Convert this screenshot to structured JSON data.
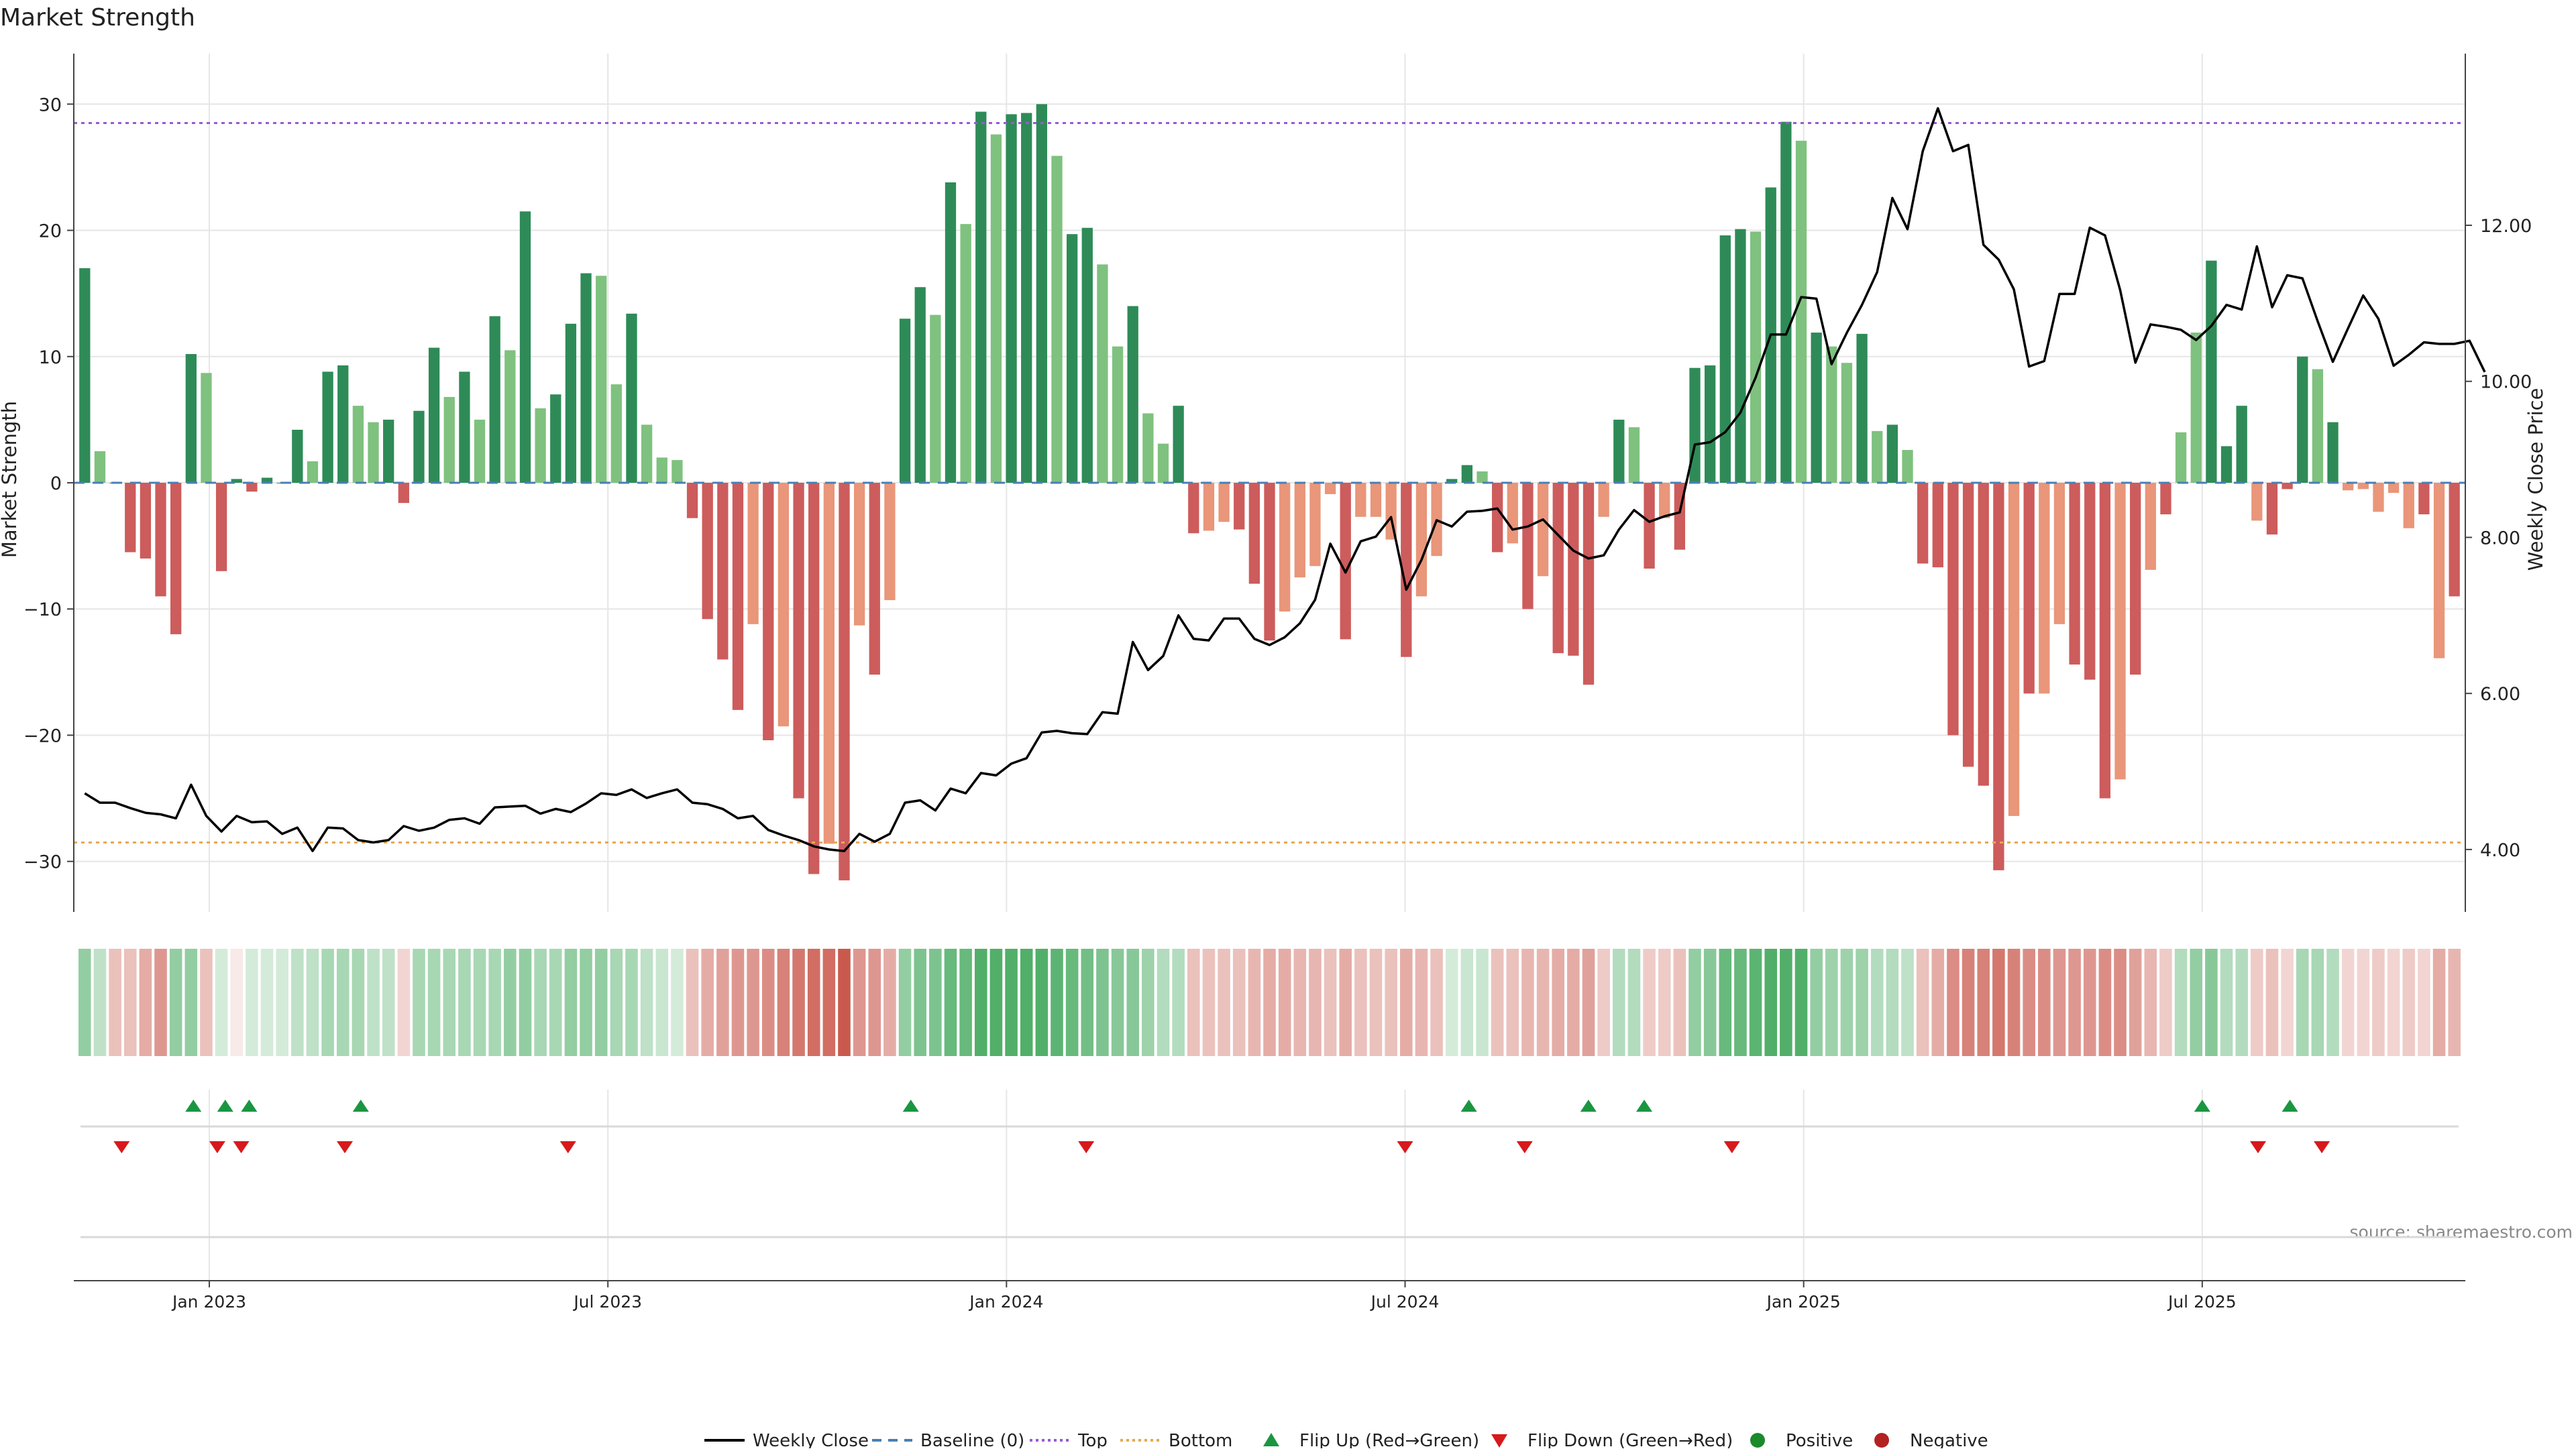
{
  "chart_data": {
    "type": "bar",
    "title": "Market Strength",
    "ylabel_left": "Market Strength",
    "ylabel_right": "Weekly Close Price",
    "ylim_left": [
      -34,
      34
    ],
    "ylim_right": [
      3.2,
      14.2
    ],
    "yticks_left": [
      30,
      20,
      10,
      0,
      -10,
      -20,
      -30
    ],
    "ytick_labels_left": [
      "30",
      "20",
      "10",
      "0",
      "−10",
      "−20",
      "−30"
    ],
    "yticks_right": [
      4,
      6,
      8,
      10,
      12
    ],
    "ytick_labels_right": [
      "4.00",
      "6.00",
      "8.00",
      "10.00",
      "12.00"
    ],
    "x_range": [
      2022.95,
      2025.95
    ],
    "x_ticks": [
      2023.12,
      2023.62,
      2024.12,
      2024.62,
      2025.12,
      2025.62
    ],
    "x_tick_labels": [
      "Jan 2023",
      "Jul 2023",
      "Jan 2024",
      "Jul 2024",
      "Jan 2025",
      "Jul 2025"
    ],
    "top_level": 28.5,
    "bottom_level": -28.5,
    "strength": [
      17,
      2.5,
      0,
      -5.5,
      -6,
      -9,
      -12,
      10.2,
      8.7,
      -7,
      0.3,
      -0.7,
      0.4,
      0,
      4.2,
      1.7,
      8.8,
      9.3,
      6.1,
      4.8,
      5,
      -1.6,
      5.7,
      10.7,
      6.8,
      8.8,
      5,
      13.2,
      10.5,
      21.5,
      5.9,
      7,
      12.6,
      16.6,
      16.4,
      7.8,
      13.4,
      4.6,
      2,
      1.8,
      -2.8,
      -10.8,
      -14,
      -18,
      -11.2,
      -20.4,
      -19.3,
      -25,
      -31,
      -28.6,
      -31.5,
      -11.3,
      -15.2,
      -9.3,
      13,
      15.5,
      13.3,
      23.8,
      20.5,
      29.4,
      27.6,
      29.2,
      29.3,
      30,
      25.9,
      19.7,
      20.2,
      17.3,
      10.8,
      14,
      5.5,
      3.1,
      6.1,
      -4,
      -3.8,
      -3.1,
      -3.7,
      -8,
      -12.5,
      -10.2,
      -7.5,
      -6.6,
      -0.9,
      -12.4,
      -2.7,
      -2.7,
      -4.5,
      -13.8,
      -9,
      -5.8,
      0.3,
      1.4,
      0.9,
      -5.5,
      -4.8,
      -10,
      -7.4,
      -13.5,
      -13.7,
      -16,
      -2.7,
      5,
      4.4,
      -6.8,
      -2.8,
      -5.3,
      9.1,
      9.3,
      19.6,
      20.1,
      19.9,
      23.4,
      28.6,
      27.1,
      11.9,
      10.8,
      9.5,
      11.8,
      4.1,
      4.6,
      2.6,
      -6.4,
      -6.7,
      -20,
      -22.5,
      -24,
      -30.7,
      -26.4,
      -16.7,
      -16.7,
      -11.2,
      -14.4,
      -15.6,
      -25,
      -23.5,
      -15.2,
      -6.9,
      -2.5,
      4,
      11.9,
      17.6,
      2.9,
      6.1,
      -3,
      -4.1,
      -0.5,
      10,
      9,
      4.8,
      -0.6,
      -0.5,
      -2.3,
      -0.8,
      -3.6,
      -2.5,
      -13.9,
      -9
    ],
    "strength_light": [
      false,
      true,
      false,
      false,
      false,
      false,
      false,
      false,
      true,
      false,
      false,
      false,
      false,
      false,
      false,
      true,
      false,
      false,
      true,
      true,
      false,
      false,
      false,
      false,
      true,
      false,
      true,
      false,
      true,
      false,
      true,
      false,
      false,
      false,
      true,
      true,
      false,
      true,
      true,
      true,
      false,
      false,
      false,
      false,
      true,
      false,
      true,
      false,
      false,
      true,
      false,
      true,
      false,
      true,
      false,
      false,
      true,
      false,
      true,
      false,
      true,
      false,
      false,
      false,
      true,
      false,
      false,
      true,
      true,
      false,
      true,
      true,
      false,
      false,
      true,
      true,
      false,
      false,
      false,
      true,
      true,
      true,
      true,
      false,
      true,
      true,
      true,
      false,
      true,
      true,
      false,
      false,
      true,
      false,
      true,
      false,
      true,
      false,
      false,
      false,
      true,
      false,
      true,
      false,
      true,
      false,
      false,
      false,
      false,
      false,
      true,
      false,
      false,
      true,
      false,
      true,
      true,
      false,
      true,
      false,
      true,
      false,
      false,
      false,
      false,
      false,
      false,
      true,
      false,
      true,
      true,
      false,
      false,
      false,
      true,
      false,
      true,
      false,
      true,
      true,
      false,
      false,
      false,
      true,
      false,
      false,
      false,
      true,
      false,
      true,
      true,
      true,
      true,
      true,
      false,
      true,
      false,
      true
    ],
    "series": [
      {
        "name": "Weekly Close",
        "values": [
          4.72,
          4.6,
          4.6,
          4.53,
          4.47,
          4.45,
          4.4,
          4.83,
          4.43,
          4.23,
          4.43,
          4.35,
          4.36,
          4.2,
          4.28,
          3.98,
          4.28,
          4.27,
          4.12,
          4.09,
          4.12,
          4.3,
          4.24,
          4.28,
          4.38,
          4.4,
          4.33,
          4.54,
          4.55,
          4.56,
          4.46,
          4.52,
          4.48,
          4.59,
          4.72,
          4.7,
          4.77,
          4.66,
          4.72,
          4.77,
          4.6,
          4.58,
          4.52,
          4.4,
          4.43,
          4.25,
          4.18,
          4.12,
          4.04,
          4.0,
          3.98,
          4.2,
          4.1,
          4.2,
          4.6,
          4.63,
          4.5,
          4.78,
          4.72,
          4.98,
          4.95,
          5.1,
          5.17,
          5.5,
          5.52,
          5.49,
          5.48,
          5.76,
          5.74,
          6.66,
          6.3,
          6.48,
          7.0,
          6.7,
          6.68,
          6.96,
          6.96,
          6.7,
          6.62,
          6.72,
          6.9,
          7.2,
          7.92,
          7.55,
          7.95,
          8.01,
          8.26,
          7.33,
          7.71,
          8.22,
          8.14,
          8.33,
          8.34,
          8.37,
          8.1,
          8.14,
          8.23,
          8.03,
          7.83,
          7.73,
          7.77,
          8.1,
          8.35,
          8.2,
          8.27,
          8.32,
          9.19,
          9.22,
          9.35,
          9.6,
          10.05,
          10.6,
          10.6,
          11.08,
          11.06,
          10.22,
          10.62,
          10.98,
          11.4,
          12.35,
          11.95,
          12.95,
          13.5,
          12.95,
          13.03,
          11.75,
          11.56,
          11.18,
          10.19,
          10.26,
          11.12,
          11.12,
          11.97,
          11.87,
          11.17,
          10.24,
          10.73,
          10.7,
          10.66,
          10.53,
          10.71,
          10.98,
          10.92,
          11.73,
          10.95,
          11.36,
          11.32,
          10.77,
          10.25,
          10.68,
          11.1,
          10.8,
          10.2,
          10.34,
          10.5,
          10.48,
          10.48,
          10.52,
          10.12
        ]
      },
      {
        "name": "Baseline (0)",
        "values": [
          0
        ]
      },
      {
        "name": "Top",
        "values": [
          28.5
        ]
      },
      {
        "name": "Bottom",
        "values": [
          -28.5
        ]
      }
    ],
    "heat_strip": [
      0.5,
      0.3,
      -0.3,
      -0.3,
      -0.4,
      -0.5,
      0.5,
      0.5,
      -0.3,
      0.2,
      -0.1,
      0.2,
      0.2,
      0.2,
      0.3,
      0.3,
      0.4,
      0.4,
      0.4,
      0.3,
      0.3,
      -0.2,
      0.4,
      0.4,
      0.4,
      0.4,
      0.4,
      0.4,
      0.5,
      0.5,
      0.4,
      0.4,
      0.5,
      0.5,
      0.5,
      0.4,
      0.4,
      0.3,
      0.25,
      0.2,
      -0.3,
      -0.4,
      -0.45,
      -0.5,
      -0.5,
      -0.55,
      -0.6,
      -0.65,
      -0.7,
      -0.7,
      -0.8,
      -0.5,
      -0.5,
      -0.4,
      0.5,
      0.6,
      0.6,
      0.7,
      0.7,
      0.8,
      0.8,
      0.8,
      0.8,
      0.8,
      0.75,
      0.7,
      0.65,
      0.6,
      0.55,
      0.55,
      0.45,
      0.35,
      0.35,
      -0.3,
      -0.3,
      -0.3,
      -0.3,
      -0.35,
      -0.4,
      -0.4,
      -0.35,
      -0.35,
      -0.3,
      -0.4,
      -0.3,
      -0.3,
      -0.3,
      -0.4,
      -0.35,
      -0.3,
      0.2,
      0.25,
      0.25,
      -0.3,
      -0.3,
      -0.35,
      -0.35,
      -0.4,
      -0.4,
      -0.45,
      -0.25,
      0.35,
      0.35,
      -0.25,
      -0.25,
      -0.3,
      0.5,
      0.55,
      0.7,
      0.7,
      0.75,
      0.8,
      0.8,
      0.8,
      0.5,
      0.45,
      0.45,
      0.45,
      0.35,
      0.35,
      0.3,
      -0.3,
      -0.4,
      -0.55,
      -0.6,
      -0.6,
      -0.65,
      -0.6,
      -0.55,
      -0.55,
      -0.5,
      -0.5,
      -0.5,
      -0.55,
      -0.55,
      -0.45,
      -0.35,
      -0.25,
      0.35,
      0.5,
      0.55,
      0.35,
      0.35,
      -0.25,
      -0.3,
      -0.2,
      0.4,
      0.4,
      0.35,
      -0.2,
      -0.2,
      -0.25,
      -0.2,
      -0.25,
      -0.2,
      -0.4,
      -0.35
    ],
    "flip_up": [
      2023.1,
      2023.14,
      2023.17,
      2023.31,
      2024.0,
      2024.7,
      2024.85,
      2024.92,
      2025.62,
      2025.73
    ],
    "flip_down": [
      2023.01,
      2023.13,
      2023.16,
      2023.29,
      2023.57,
      2024.22,
      2024.62,
      2024.77,
      2025.03,
      2025.69,
      2025.77
    ],
    "source": "source: sharemaestro.com",
    "legend": [
      "Weekly Close",
      "Baseline (0)",
      "Top",
      "Bottom",
      "Flip Up (Red→Green)",
      "Flip Down (Green→Red)",
      "Positive",
      "Negative"
    ],
    "colors": {
      "strong_up": "#2e8b57",
      "weak_up": "#7fc17f",
      "strong_down": "#cd5c5c",
      "weak_down": "#e9967a",
      "price_line": "#000000",
      "baseline": "#4a7fb5",
      "top_line": "#9b59d0",
      "bottom_line": "#e8a850",
      "flip_up": "#1a9641",
      "flip_down": "#d7191c",
      "positive": "#1a8a2a",
      "negative": "#b22222",
      "heat_green": "#3aa455",
      "heat_red": "#c0392b",
      "grid": "#e6e6e6",
      "text": "#222222",
      "source": "#888888"
    }
  }
}
